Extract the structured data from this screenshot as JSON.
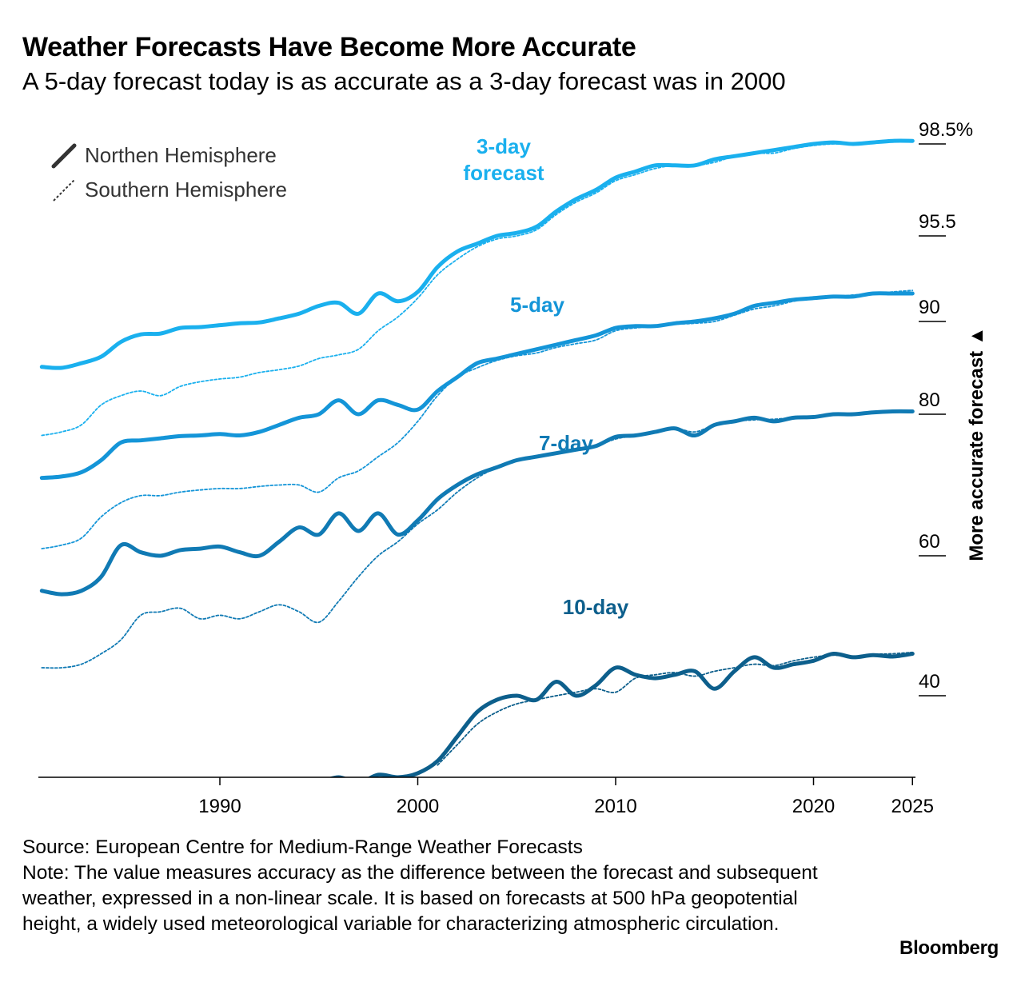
{
  "title": "Weather Forecasts Have Become More Accurate",
  "subtitle": "A 5-day forecast today is as accurate as a 3-day forecast was in 2000",
  "legend": {
    "solid_label": "Northen Hemisphere",
    "dashed_label": "Southern Hemisphere"
  },
  "y_axis_label": "More accurate forecast ▲",
  "source": "Source: European Centre for Medium-Range Weather Forecasts",
  "note": "Note: The value measures accuracy as the difference between the forecast and subsequent weather, expressed in a non-linear scale. It is based on forecasts at 500 hPa geopotential height, a widely used meteorological variable for characterizing atmospheric circulation.",
  "brand": "Bloomberg",
  "chart_data": {
    "type": "line",
    "x_ticks": [
      "1990",
      "2000",
      "2010",
      "2020",
      "2025"
    ],
    "y_ticks": [
      "98.5%",
      "95.5",
      "90",
      "80",
      "60",
      "40"
    ],
    "y_tick_values": [
      98.5,
      95.5,
      90,
      80,
      60,
      40
    ],
    "y_scale": "non-linear",
    "xlim": [
      1981,
      2025
    ],
    "series_labels": [
      "3-day\nforecast",
      "5-day",
      "7-day",
      "10-day"
    ],
    "colors": {
      "3-day": "#1ab0ee",
      "5-day": "#1495d8",
      "7-day": "#107ab4",
      "10-day": "#0d5f8c"
    },
    "series": [
      {
        "label": "3-day",
        "hemisphere": "north",
        "x": [
          1981,
          1982,
          1983,
          1984,
          1985,
          1986,
          1987,
          1988,
          1989,
          1990,
          1991,
          1992,
          1993,
          1994,
          1995,
          1996,
          1997,
          1998,
          1999,
          2000,
          2001,
          2002,
          2003,
          2004,
          2005,
          2006,
          2007,
          2008,
          2009,
          2010,
          2011,
          2012,
          2013,
          2014,
          2015,
          2016,
          2017,
          2018,
          2019,
          2020,
          2021,
          2022,
          2023,
          2024,
          2025
        ],
        "values": [
          85.1,
          85.0,
          85.5,
          86.2,
          87.8,
          88.6,
          88.7,
          89.3,
          89.4,
          89.6,
          89.8,
          89.9,
          90.2,
          90.5,
          91.0,
          91.2,
          90.5,
          91.8,
          91.3,
          91.9,
          93.5,
          94.5,
          95.0,
          95.5,
          95.6,
          95.8,
          96.3,
          96.7,
          97.0,
          97.4,
          97.6,
          97.8,
          97.8,
          97.8,
          98.0,
          98.1,
          98.2,
          98.3,
          98.4,
          98.5,
          98.55,
          98.5,
          98.55,
          98.6,
          98.6
        ]
      },
      {
        "label": "3-day",
        "hemisphere": "south",
        "x": [
          1981,
          1982,
          1983,
          1984,
          1985,
          1986,
          1987,
          1988,
          1989,
          1990,
          1991,
          1992,
          1993,
          1994,
          1995,
          1996,
          1997,
          1998,
          1999,
          2000,
          2001,
          2002,
          2003,
          2004,
          2005,
          2006,
          2007,
          2008,
          2009,
          2010,
          2011,
          2012,
          2013,
          2014,
          2015,
          2016,
          2017,
          2018,
          2019,
          2020,
          2021,
          2022,
          2023,
          2024,
          2025
        ],
        "values": [
          77.0,
          77.5,
          78.5,
          81.0,
          82.0,
          82.5,
          82.0,
          83.0,
          83.5,
          83.8,
          84.0,
          84.5,
          84.8,
          85.2,
          86.0,
          86.4,
          87.0,
          89.0,
          90.3,
          91.5,
          93.0,
          94.0,
          94.8,
          95.3,
          95.5,
          95.7,
          96.2,
          96.6,
          96.9,
          97.3,
          97.5,
          97.7,
          97.8,
          97.8,
          97.9,
          98.1,
          98.2,
          98.2,
          98.35,
          98.45,
          98.5,
          98.5,
          98.55,
          98.6,
          98.6
        ]
      },
      {
        "label": "5-day",
        "hemisphere": "north",
        "x": [
          1981,
          1982,
          1983,
          1984,
          1985,
          1986,
          1987,
          1988,
          1989,
          1990,
          1991,
          1992,
          1993,
          1994,
          1995,
          1996,
          1997,
          1998,
          1999,
          2000,
          2001,
          2002,
          2003,
          2004,
          2005,
          2006,
          2007,
          2008,
          2009,
          2010,
          2011,
          2012,
          2013,
          2014,
          2015,
          2016,
          2017,
          2018,
          2019,
          2020,
          2021,
          2022,
          2023,
          2024,
          2025
        ],
        "values": [
          71.0,
          71.2,
          71.8,
          73.5,
          76.0,
          76.3,
          76.6,
          76.9,
          77.0,
          77.2,
          77.0,
          77.5,
          78.5,
          79.5,
          80.0,
          81.5,
          80.0,
          81.5,
          81.0,
          80.5,
          82.5,
          84.0,
          85.5,
          86.0,
          86.5,
          87.0,
          87.5,
          88.0,
          88.5,
          89.3,
          89.5,
          89.5,
          89.8,
          90.0,
          90.2,
          90.5,
          91.0,
          91.2,
          91.4,
          91.5,
          91.6,
          91.6,
          91.8,
          91.8,
          91.8
        ]
      },
      {
        "label": "5-day",
        "hemisphere": "south",
        "x": [
          1981,
          1982,
          1983,
          1984,
          1985,
          1986,
          1987,
          1988,
          1989,
          1990,
          1991,
          1992,
          1993,
          1994,
          1995,
          1996,
          1997,
          1998,
          1999,
          2000,
          2001,
          2002,
          2003,
          2004,
          2005,
          2006,
          2007,
          2008,
          2009,
          2010,
          2011,
          2012,
          2013,
          2014,
          2015,
          2016,
          2017,
          2018,
          2019,
          2020,
          2021,
          2022,
          2023,
          2024,
          2025
        ],
        "values": [
          61.0,
          61.5,
          62.5,
          65.5,
          67.5,
          68.5,
          68.5,
          69.0,
          69.3,
          69.5,
          69.5,
          69.8,
          70.0,
          70.0,
          69.0,
          71.0,
          72.0,
          74.0,
          76.0,
          79.0,
          82.0,
          84.0,
          85.0,
          85.8,
          86.3,
          86.6,
          87.2,
          87.6,
          88.0,
          89.0,
          89.3,
          89.5,
          89.7,
          89.8,
          90.0,
          90.4,
          90.8,
          91.0,
          91.3,
          91.5,
          91.6,
          91.7,
          91.8,
          91.9,
          92.0
        ]
      },
      {
        "label": "7-day",
        "hemisphere": "north",
        "x": [
          1981,
          1982,
          1983,
          1984,
          1985,
          1986,
          1987,
          1988,
          1989,
          1990,
          1991,
          1992,
          1993,
          1994,
          1995,
          1996,
          1997,
          1998,
          1999,
          2000,
          2001,
          2002,
          2003,
          2004,
          2005,
          2006,
          2007,
          2008,
          2009,
          2010,
          2011,
          2012,
          2013,
          2014,
          2015,
          2016,
          2017,
          2018,
          2019,
          2020,
          2021,
          2022,
          2023,
          2024,
          2025
        ],
        "values": [
          55.0,
          54.5,
          55.0,
          57.0,
          61.5,
          60.5,
          60.0,
          60.8,
          61.0,
          61.3,
          60.5,
          60.0,
          62.0,
          64.0,
          63.0,
          66.0,
          63.5,
          66.0,
          63.0,
          65.0,
          68.0,
          70.0,
          71.5,
          72.5,
          73.5,
          74.0,
          74.5,
          75.0,
          75.5,
          76.8,
          77.0,
          77.5,
          78.0,
          77.0,
          78.5,
          79.0,
          79.5,
          79.0,
          79.5,
          79.6,
          80.0,
          80.0,
          80.2,
          80.3,
          80.3
        ]
      },
      {
        "label": "7-day",
        "hemisphere": "south",
        "x": [
          1981,
          1982,
          1983,
          1984,
          1985,
          1986,
          1987,
          1988,
          1989,
          1990,
          1991,
          1992,
          1993,
          1994,
          1995,
          1996,
          1997,
          1998,
          1999,
          2000,
          2001,
          2002,
          2003,
          2004,
          2005,
          2006,
          2007,
          2008,
          2009,
          2010,
          2011,
          2012,
          2013,
          2014,
          2015,
          2016,
          2017,
          2018,
          2019,
          2020,
          2021,
          2022,
          2023,
          2024,
          2025
        ],
        "values": [
          44.0,
          44.0,
          44.5,
          46.0,
          48.0,
          51.5,
          52.0,
          52.5,
          51.0,
          51.5,
          51.0,
          52.0,
          53.0,
          52.0,
          50.5,
          53.5,
          57.0,
          60.0,
          62.0,
          64.5,
          66.5,
          69.0,
          71.0,
          72.5,
          73.5,
          74.0,
          74.5,
          75.0,
          75.5,
          76.5,
          77.0,
          77.5,
          78.0,
          77.5,
          78.5,
          79.0,
          79.2,
          79.3,
          79.5,
          79.7,
          80.0,
          80.1,
          80.2,
          80.3,
          80.3
        ]
      },
      {
        "label": "10-day",
        "hemisphere": "north",
        "x": [
          1995,
          1996,
          1997,
          1998,
          1999,
          2000,
          2001,
          2002,
          2003,
          2004,
          2005,
          2006,
          2007,
          2008,
          2009,
          2010,
          2011,
          2012,
          2013,
          2014,
          2015,
          2016,
          2017,
          2018,
          2019,
          2020,
          2021,
          2022,
          2023,
          2024,
          2025
        ],
        "values": [
          29.5,
          30.0,
          29.5,
          30.3,
          30.0,
          30.5,
          32.0,
          35.0,
          38.0,
          39.5,
          40.0,
          39.5,
          42.0,
          40.0,
          41.5,
          44.0,
          43.0,
          42.5,
          43.0,
          43.5,
          41.0,
          43.5,
          45.5,
          44.0,
          44.5,
          45.0,
          46.0,
          45.5,
          45.8,
          45.6,
          46.0
        ]
      },
      {
        "label": "10-day",
        "hemisphere": "south",
        "x": [
          2001,
          2002,
          2003,
          2004,
          2005,
          2006,
          2007,
          2008,
          2009,
          2010,
          2011,
          2012,
          2013,
          2014,
          2015,
          2016,
          2017,
          2018,
          2019,
          2020,
          2021,
          2022,
          2023,
          2024,
          2025
        ],
        "values": [
          31.5,
          34.0,
          36.5,
          38.0,
          39.0,
          39.5,
          40.0,
          40.5,
          41.0,
          40.5,
          42.5,
          43.0,
          43.3,
          42.8,
          43.5,
          44.0,
          44.5,
          44.3,
          45.0,
          45.5,
          45.8,
          45.5,
          45.9,
          46.0,
          46.2
        ]
      }
    ]
  }
}
